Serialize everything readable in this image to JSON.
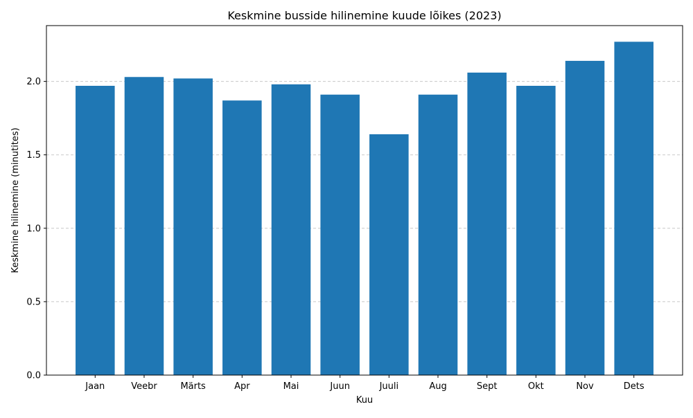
{
  "chart_data": {
    "type": "bar",
    "title": "Keskmine busside hilinemine kuude lõikes (2023)",
    "xlabel": "Kuu",
    "ylabel": "Keskmine hilinemine (minutites)",
    "categories": [
      "Jaan",
      "Veebr",
      "Märts",
      "Apr",
      "Mai",
      "Juun",
      "Juuli",
      "Aug",
      "Sept",
      "Okt",
      "Nov",
      "Dets"
    ],
    "values": [
      1.97,
      2.03,
      2.02,
      1.87,
      1.98,
      1.91,
      1.64,
      1.91,
      2.06,
      1.97,
      2.14,
      2.27
    ],
    "ylim": [
      0,
      2.38
    ],
    "yticks": [
      "0.0",
      "0.5",
      "1.0",
      "1.5",
      "2.0"
    ],
    "grid": "y-dashed",
    "bar_color": "#1f77b4",
    "grid_color": "#c8c8c8"
  }
}
